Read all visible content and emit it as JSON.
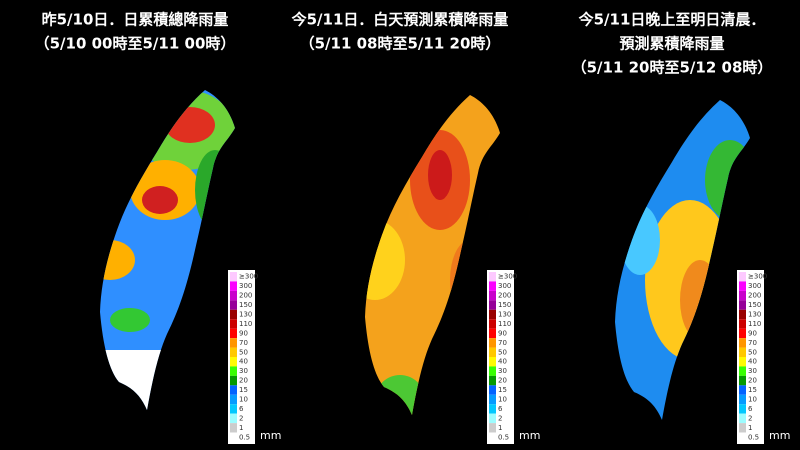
{
  "panels": [
    {
      "title": [
        "昨5/10日．日累積總降雨量",
        "（5/10 00時至5/11 00時）"
      ]
    },
    {
      "title": [
        "今5/11日．白天預測累積降雨量",
        "（5/11 08時至5/11 20時）"
      ]
    },
    {
      "title": [
        "今5/11日晚上至明日清晨．",
        "預測累積降雨量",
        "（5/11 20時至5/12 08時）"
      ]
    }
  ],
  "legend": {
    "labels": [
      "≥300",
      "300",
      "200",
      "150",
      "130",
      "110",
      "90",
      "70",
      "50",
      "40",
      "30",
      "20",
      "15",
      "10",
      "6",
      "2",
      "1",
      "0.5"
    ],
    "colors": [
      "#fdc9ff",
      "#fb00ff",
      "#c900cc",
      "#960099",
      "#990000",
      "#cc0000",
      "#ff0000",
      "#ff9500",
      "#ffc800",
      "#fffb03",
      "#39ff03",
      "#059902",
      "#0363ff",
      "#059bff",
      "#03c8ff",
      "#9cfcff",
      "#cccccc",
      "#ffffff"
    ],
    "unit": "mm"
  }
}
